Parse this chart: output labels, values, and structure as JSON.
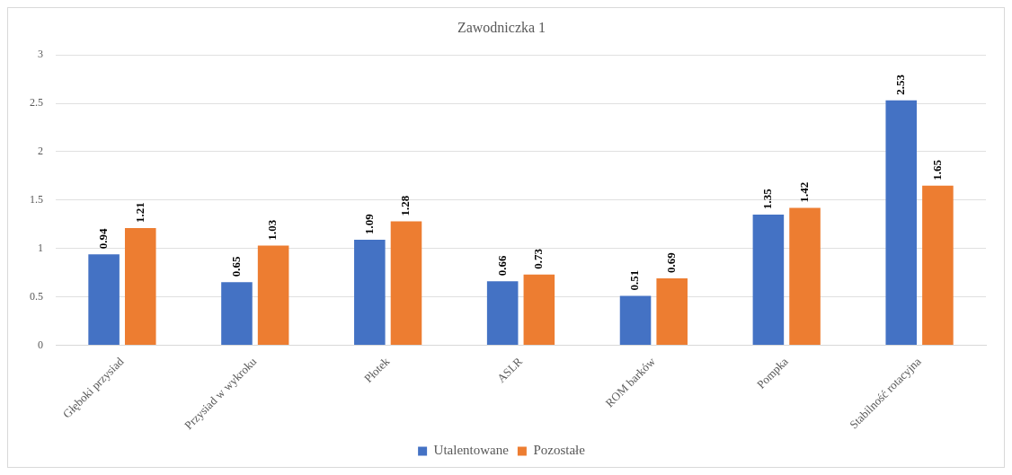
{
  "chart_data": {
    "type": "bar",
    "title": "Zawodniczka 1",
    "categories": [
      "Głęboki przysiad",
      "Przysiad w wykroku",
      "Płotek",
      "ASLR",
      "ROM barków",
      "Pompka",
      "Stabilność rotacyjna"
    ],
    "series": [
      {
        "name": "Utalentowane",
        "color": "#4472c4",
        "values": [
          0.94,
          0.65,
          1.09,
          0.66,
          0.51,
          1.35,
          2.53
        ]
      },
      {
        "name": "Pozostałe",
        "color": "#ed7d31",
        "values": [
          1.21,
          1.03,
          1.28,
          0.73,
          0.69,
          1.42,
          1.65
        ]
      }
    ],
    "ylim": [
      0,
      3
    ],
    "yticks": [
      0,
      0.5,
      1,
      1.5,
      2,
      2.5,
      3
    ],
    "grid": "y",
    "legend": "bottom",
    "data_labels": true
  }
}
